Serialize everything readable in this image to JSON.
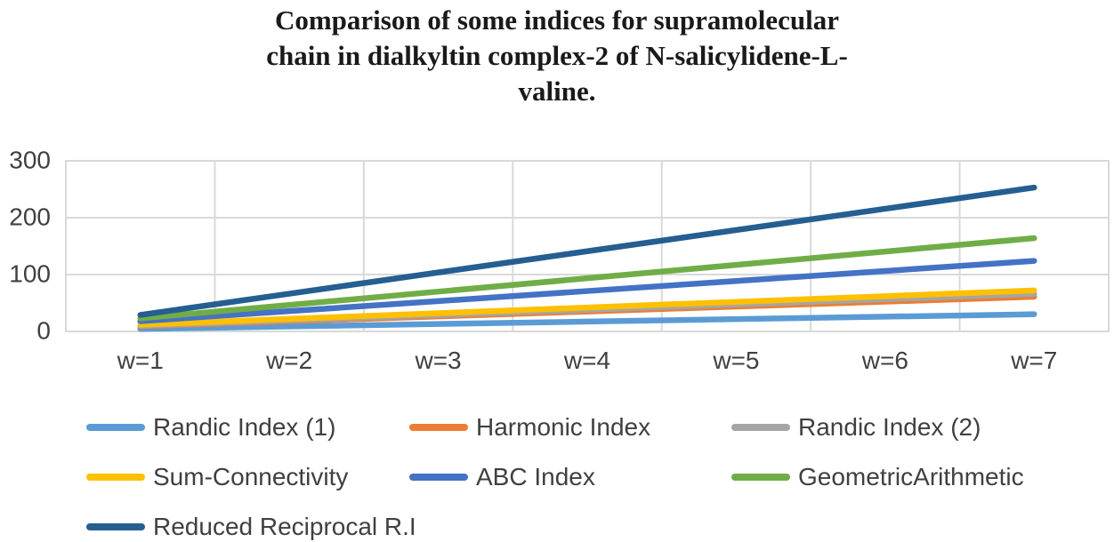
{
  "title_lines": [
    "Comparison of some indices for supramolecular",
    "chain in dialkyltin complex-2 of N-salicylidene-L-",
    "valine."
  ],
  "chart_data": {
    "type": "line",
    "title": "Comparison of some indices for supramolecular chain in dialkyltin complex-2 of N-salicylidene-L-valine.",
    "categories": [
      "w=1",
      "w=2",
      "w=3",
      "w=4",
      "w=5",
      "w=6",
      "w=7"
    ],
    "xlabel": "",
    "ylabel": "",
    "ylim": [
      0,
      300
    ],
    "yticks": [
      0,
      100,
      200,
      300
    ],
    "grid": true,
    "legend_position": "bottom",
    "series": [
      {
        "name": "Randic Index (1)",
        "color": "#5B9BD5",
        "values": [
          4.4,
          8.7,
          13.0,
          17.3,
          21.6,
          25.9,
          30.2
        ]
      },
      {
        "name": "Harmonic Index",
        "color": "#ED7D31",
        "values": [
          9.0,
          17.7,
          26.3,
          35.0,
          43.7,
          52.3,
          61.0
        ]
      },
      {
        "name": "Randic Index (2)",
        "color": "#A5A5A5",
        "values": [
          10.0,
          19.3,
          28.7,
          38.0,
          47.3,
          56.7,
          66.0
        ]
      },
      {
        "name": "Sum-Connectivity",
        "color": "#FFC000",
        "values": [
          12.0,
          22.0,
          32.0,
          42.0,
          52.0,
          62.0,
          72.0
        ]
      },
      {
        "name": "ABC Index",
        "color": "#4472C4",
        "values": [
          18.0,
          35.7,
          53.3,
          71.0,
          88.7,
          106.3,
          124.0
        ]
      },
      {
        "name": "GeometricArithmetic",
        "color": "#70AD47",
        "values": [
          23.0,
          46.5,
          70.0,
          93.5,
          117.0,
          140.5,
          164.0
        ]
      },
      {
        "name": "Reduced Reciprocal R.I",
        "color": "#255E91",
        "values": [
          29.0,
          66.3,
          103.7,
          141.0,
          178.3,
          215.7,
          253.0
        ]
      }
    ]
  },
  "colors": {
    "gridline": "#D9D9D9",
    "plot_border": "#D9D9D9",
    "tick_text": "#404040",
    "title_text": "#1A1A1A",
    "background": "#FFFFFF"
  }
}
